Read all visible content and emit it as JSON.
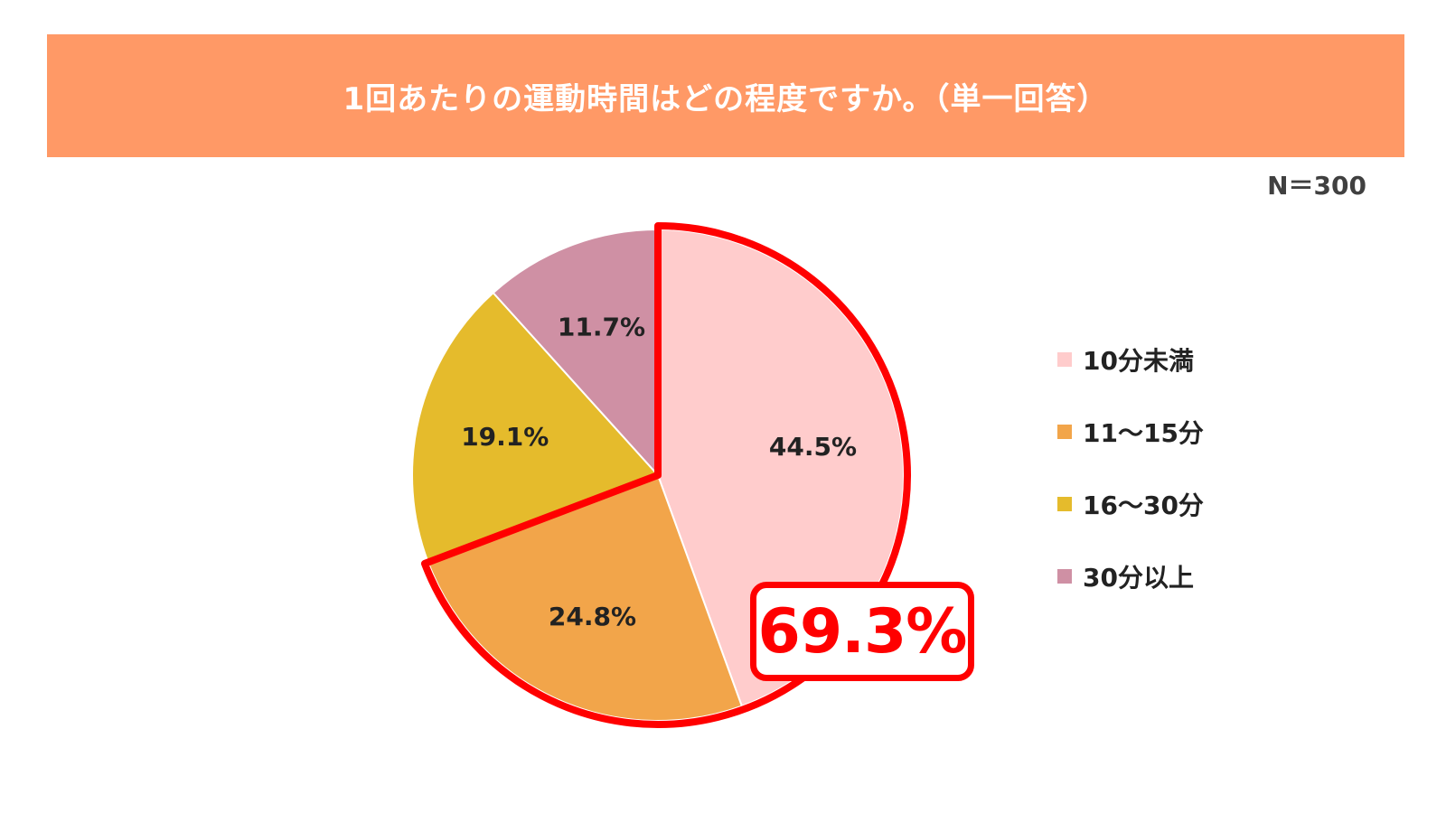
{
  "header": {
    "title": "1回あたりの運動時間はどの程度ですか。（単一回答）"
  },
  "sample_size": "N＝300",
  "chart_data": {
    "type": "pie",
    "categories": [
      "10分未満",
      "11～15分",
      "16～30分",
      "30分以上"
    ],
    "values": [
      44.5,
      24.8,
      19.1,
      11.7
    ],
    "value_labels": [
      "44.5%",
      "24.8%",
      "19.1%",
      "11.7%"
    ],
    "colors": [
      "#FFCCCC",
      "#F2A54A",
      "#E5BB2C",
      "#CF90A4"
    ],
    "start_angle_deg": 0,
    "direction": "clockwise",
    "legend_position": "right",
    "highlight": {
      "categories": [
        "10分未満",
        "11～15分"
      ],
      "value": "69.3%",
      "outline_color": "#FF0000"
    }
  }
}
